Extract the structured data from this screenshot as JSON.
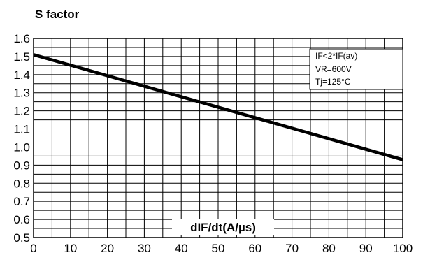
{
  "chart_data": {
    "type": "line",
    "title": "S factor",
    "xlabel": "dIF/dt(A/µs)",
    "ylabel": "",
    "xlim": [
      0,
      100
    ],
    "ylim": [
      0.5,
      1.6
    ],
    "x_ticks": [
      "0",
      "10",
      "20",
      "30",
      "40",
      "50",
      "60",
      "70",
      "80",
      "90",
      "100"
    ],
    "y_ticks": [
      "1.6",
      "1.5",
      "1.4",
      "1.3",
      "1.2",
      "1.1",
      "1.0",
      "0.9",
      "0.8",
      "0.7",
      "0.6",
      "0.5"
    ],
    "grid": true,
    "series": [
      {
        "x": [
          0,
          100
        ],
        "y": [
          1.51,
          0.93
        ]
      }
    ],
    "annotations": [
      "IF<2*IF(av)",
      "VR=600V",
      "Tj=125°C"
    ],
    "colors": {
      "line": "#000000",
      "grid": "#000000",
      "annotation_box": "#ffffff"
    }
  }
}
